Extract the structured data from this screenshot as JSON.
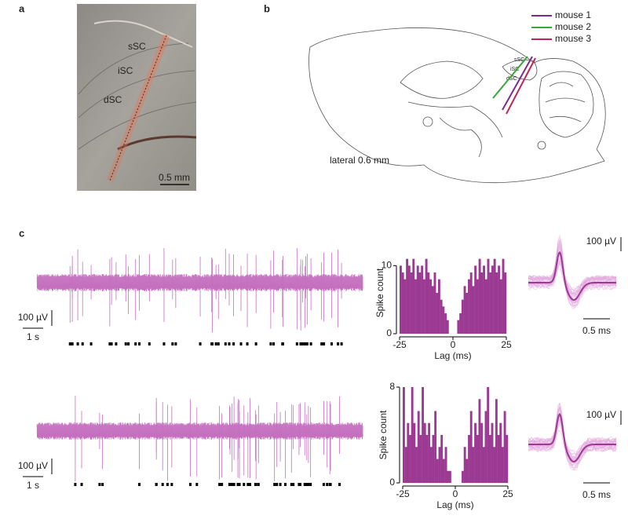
{
  "panels": {
    "a": {
      "label": "a",
      "regions": [
        "sSC",
        "iSC",
        "dSC"
      ],
      "scale_bar": "0.5 mm"
    },
    "b": {
      "label": "b",
      "regions": [
        "sSC",
        "iSC",
        "dSC"
      ],
      "caption": "lateral 0.6 mm",
      "legend": [
        {
          "name": "mouse 1",
          "color": "#7b2d8e"
        },
        {
          "name": "mouse 2",
          "color": "#3aa53a"
        },
        {
          "name": "mouse 3",
          "color": "#c0245a"
        }
      ]
    },
    "c": {
      "label": "c",
      "rows": [
        {
          "amplitude_bar": "100 µV",
          "time_bar": "1 s",
          "waveform_amplitude_bar": "100 µV",
          "waveform_time_bar": "0.5 ms"
        },
        {
          "amplitude_bar": "100 µV",
          "time_bar": "1 s",
          "waveform_amplitude_bar": "100 µV",
          "waveform_time_bar": "0.5 ms"
        }
      ]
    }
  },
  "chart_data": [
    {
      "type": "histogram",
      "xlabel": "Lag (ms)",
      "ylabel": "Spike count",
      "color": "#9c3a93",
      "bins": [
        -25,
        -24,
        -23,
        -22,
        -21,
        -20,
        -19,
        -18,
        -17,
        -16,
        -15,
        -14,
        -13,
        -12,
        -11,
        -10,
        -9,
        -8,
        -7,
        -6,
        -5,
        -4,
        -3,
        -2,
        -1,
        0,
        1,
        2,
        3,
        4,
        5,
        6,
        7,
        8,
        9,
        10,
        11,
        12,
        13,
        14,
        15,
        16,
        17,
        18,
        19,
        20,
        21,
        22,
        23,
        24,
        25
      ],
      "values": [
        10,
        9,
        8,
        11,
        10,
        9,
        11,
        8,
        10,
        9,
        10,
        8,
        11,
        9,
        8,
        7,
        9,
        6,
        8,
        5,
        4,
        3,
        2,
        0,
        0,
        0,
        0,
        2,
        3,
        5,
        7,
        6,
        8,
        9,
        7,
        10,
        8,
        11,
        9,
        10,
        8,
        11,
        9,
        10,
        11,
        9,
        10,
        8,
        11,
        9
      ],
      "xlim": [
        -25,
        25
      ],
      "xticks": [
        -25,
        0,
        25
      ],
      "ylim": [
        0,
        12
      ],
      "yticks": [
        0,
        10
      ]
    },
    {
      "type": "histogram",
      "xlabel": "Lag (ms)",
      "ylabel": "Spike count",
      "color": "#9c3a93",
      "bins": [
        -25,
        -24,
        -23,
        -22,
        -21,
        -20,
        -19,
        -18,
        -17,
        -16,
        -15,
        -14,
        -13,
        -12,
        -11,
        -10,
        -9,
        -8,
        -7,
        -6,
        -5,
        -4,
        -3,
        -2,
        -1,
        0,
        1,
        2,
        3,
        4,
        5,
        6,
        7,
        8,
        9,
        10,
        11,
        12,
        13,
        14,
        15,
        16,
        17,
        18,
        19,
        20,
        21,
        22,
        23,
        24,
        25
      ],
      "values": [
        8,
        3,
        5,
        4,
        8,
        5,
        3,
        6,
        4,
        8,
        5,
        4,
        5,
        3,
        4,
        6,
        2,
        3,
        4,
        2,
        3,
        1,
        1,
        0,
        0,
        0,
        0,
        0,
        1,
        3,
        2,
        4,
        6,
        3,
        5,
        4,
        7,
        5,
        3,
        6,
        8,
        4,
        5,
        3,
        7,
        4,
        5,
        3,
        6,
        4
      ],
      "xlim": [
        -25,
        25
      ],
      "xticks": [
        -25,
        0,
        25
      ],
      "ylim": [
        0,
        8
      ],
      "yticks": [
        0,
        8
      ]
    }
  ]
}
